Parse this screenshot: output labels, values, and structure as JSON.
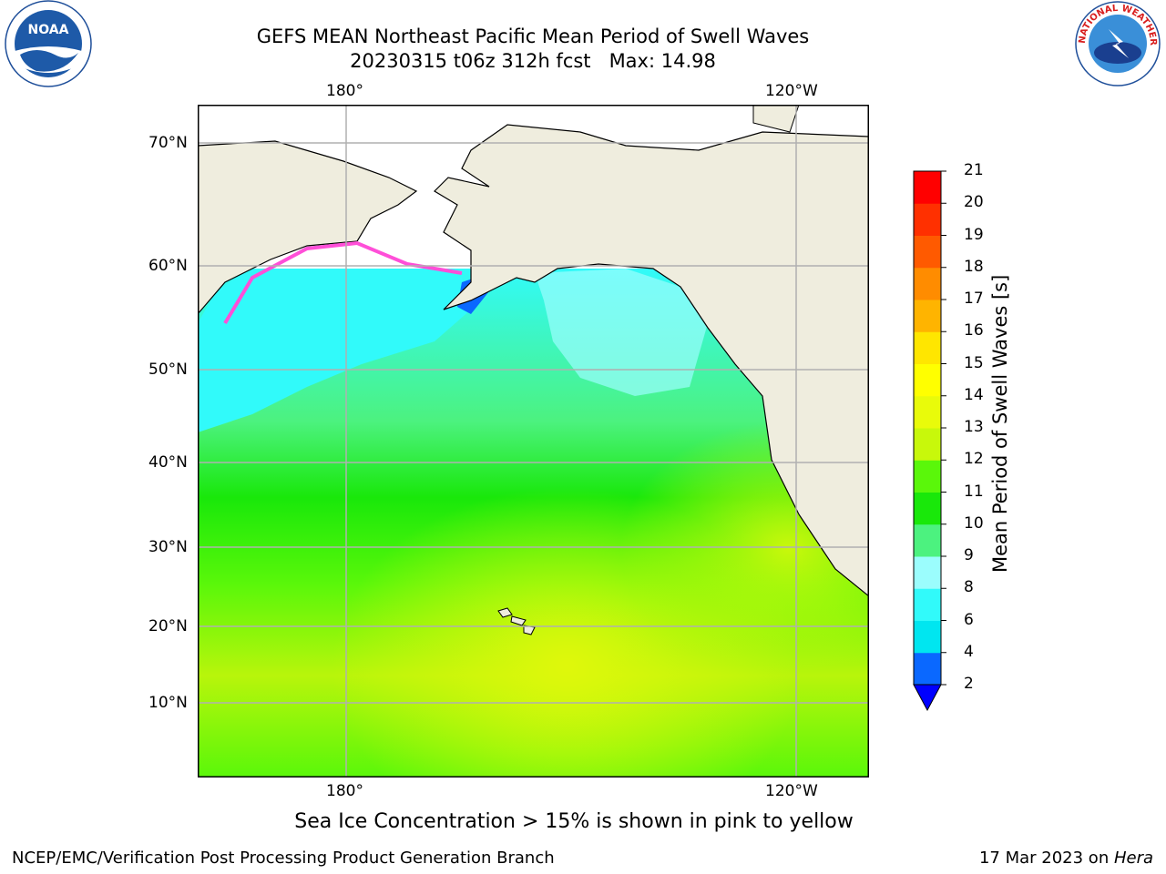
{
  "title": {
    "line1": "GEFS MEAN Northeast Pacific Mean Period of Swell Waves",
    "line2": "20230315 t06z 312h fcst   Max: 14.98"
  },
  "map": {
    "lon_ticks_top": [
      "180°",
      "120°W"
    ],
    "lon_ticks_bottom": [
      "180°",
      "120°W"
    ],
    "lat_ticks": [
      "70°N",
      "60°N",
      "50°N",
      "40°N",
      "30°N",
      "20°N",
      "10°N"
    ],
    "land_color": "#efedde",
    "grid_color": "#b0b0b0"
  },
  "colorbar": {
    "title": "Mean Period of Swell Waves [s]",
    "levels": [
      "2",
      "4",
      "6",
      "8",
      "9",
      "10",
      "11",
      "12",
      "13",
      "14",
      "15",
      "16",
      "17",
      "18",
      "19",
      "20",
      "21"
    ],
    "colors": [
      "#0a68ff",
      "#00e6f0",
      "#31fafa",
      "#9bfdfd",
      "#4cf27f",
      "#19e80a",
      "#5af70a",
      "#c8f80b",
      "#e9fb0a",
      "#ffff00",
      "#ffe600",
      "#ffb400",
      "#ff8c00",
      "#ff5a00",
      "#ff3000",
      "#ff0000"
    ],
    "under_color": "#0000ff"
  },
  "note": "Sea Ice Concentration > 15% is shown in pink to yellow",
  "footer": {
    "left": "NCEP/EMC/Verification Post Processing Product Generation Branch",
    "date": "17 Mar 2023 on ",
    "machine": "Hera"
  },
  "logos": {
    "left": "NOAA",
    "right": "NATIONAL WEATHER SERVICE"
  }
}
